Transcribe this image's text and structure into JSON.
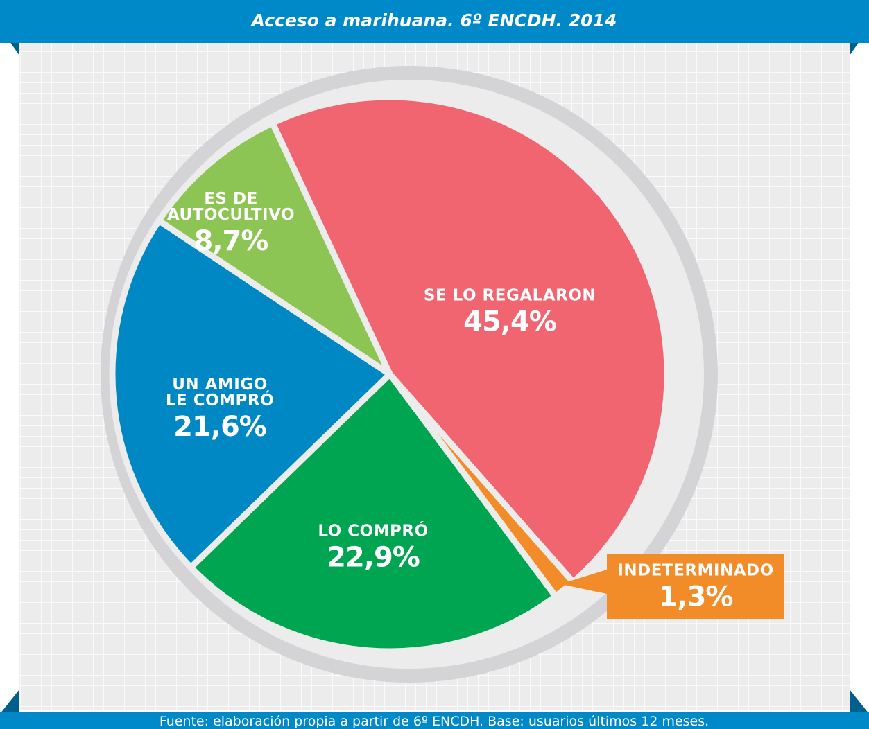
{
  "chart_data": {
    "type": "pie",
    "title": "Acceso a marihuana. 6º ENCDH. 2014",
    "source": "Fuente: elaboración propia a partir de 6º ENCDH. Base: usuarios últimos 12 meses.",
    "categories": [
      "SE LO REGALARON",
      "INDETERMINADO",
      "LO COMPRÓ",
      "UN AMIGO LE COMPRÓ",
      "ES DE AUTOCULTIVO"
    ],
    "values": [
      45.4,
      1.3,
      22.9,
      21.6,
      8.7
    ],
    "value_labels": [
      "45,4%",
      "1,3%",
      "22,9%",
      "21,6%",
      "8,7%"
    ],
    "colors": [
      "#f06570",
      "#f28c28",
      "#00a551",
      "#0088c4",
      "#8cc553"
    ]
  }
}
